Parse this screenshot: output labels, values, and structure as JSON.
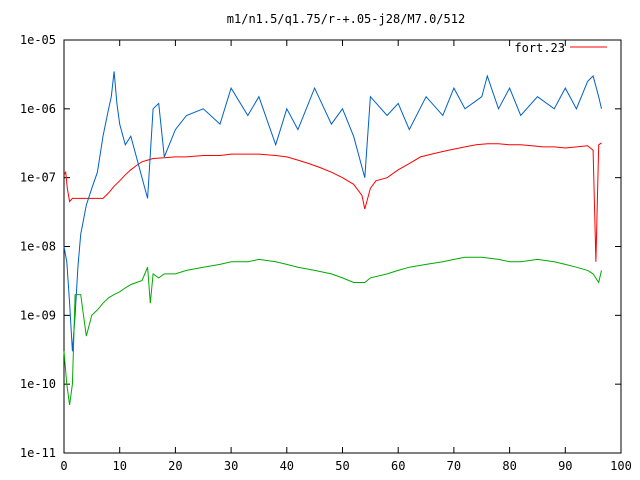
{
  "chart_data": {
    "type": "line",
    "title": "m1/n1.5/q1.75/r-+.05-j28/M7.0/512",
    "xlabel": "",
    "ylabel": "",
    "xlim": [
      0,
      100
    ],
    "ylim": [
      1e-11,
      1e-05
    ],
    "yscale": "log",
    "grid": false,
    "legend_position": "top-right",
    "x_ticks": [
      0,
      10,
      20,
      30,
      40,
      50,
      60,
      70,
      80,
      90,
      100
    ],
    "x_tick_labels": [
      "0",
      "10",
      "20",
      "30",
      "40",
      "50",
      "60",
      "70",
      "80",
      "90",
      "100"
    ],
    "y_ticks": [
      1e-11,
      1e-10,
      1e-09,
      1e-08,
      1e-07,
      1e-06,
      1e-05
    ],
    "y_tick_labels": [
      "1e-11",
      "1e-10",
      "1e-09",
      "1e-08",
      "1e-07",
      "1e-06",
      "1e-05"
    ],
    "series": [
      {
        "name": "fort.23",
        "color": "#ff0000",
        "x": [
          0,
          0.3,
          0.6,
          1,
          1.5,
          2,
          3,
          4,
          5,
          6,
          7,
          8,
          9,
          10,
          11,
          12,
          13,
          14,
          15,
          16,
          18,
          20,
          22,
          25,
          28,
          30,
          33,
          35,
          38,
          40,
          42,
          44,
          46,
          48,
          50,
          52,
          53.5,
          54,
          55,
          56,
          58,
          60,
          62,
          64,
          66,
          68,
          70,
          72,
          74,
          76,
          78,
          80,
          82,
          84,
          86,
          88,
          90,
          92,
          94,
          95,
          95.5,
          96,
          96.5
        ],
        "y": [
          1.1e-07,
          1.2e-07,
          7e-08,
          4.5e-08,
          5e-08,
          5e-08,
          5e-08,
          5e-08,
          5e-08,
          5e-08,
          5e-08,
          6e-08,
          7.5e-08,
          9e-08,
          1.1e-07,
          1.3e-07,
          1.5e-07,
          1.7e-07,
          1.8e-07,
          1.9e-07,
          1.95e-07,
          2e-07,
          2e-07,
          2.1e-07,
          2.1e-07,
          2.2e-07,
          2.2e-07,
          2.2e-07,
          2.1e-07,
          2e-07,
          1.8e-07,
          1.6e-07,
          1.4e-07,
          1.2e-07,
          1e-07,
          8e-08,
          5.5e-08,
          3.5e-08,
          7e-08,
          9e-08,
          1e-07,
          1.3e-07,
          1.6e-07,
          2e-07,
          2.2e-07,
          2.4e-07,
          2.6e-07,
          2.8e-07,
          3e-07,
          3.1e-07,
          3.1e-07,
          3e-07,
          3e-07,
          2.9e-07,
          2.8e-07,
          2.8e-07,
          2.7e-07,
          2.8e-07,
          2.9e-07,
          2.5e-07,
          6e-09,
          3e-07,
          3.2e-07
        ]
      },
      {
        "name": "",
        "color": "#0060c8",
        "x": [
          0,
          0.5,
          1,
          1.5,
          2,
          2.5,
          3,
          4,
          5,
          6,
          7,
          8,
          8.5,
          9,
          9.5,
          10,
          11,
          12,
          13,
          14,
          15,
          16,
          17,
          18,
          20,
          22,
          25,
          28,
          30,
          33,
          35,
          38,
          40,
          42,
          45,
          48,
          50,
          52,
          54,
          55,
          58,
          60,
          62,
          65,
          68,
          70,
          72,
          75,
          76,
          78,
          80,
          82,
          85,
          88,
          90,
          92,
          94,
          95,
          96,
          96.5
        ],
        "y": [
          1e-08,
          6e-09,
          1.5e-09,
          3e-10,
          1e-09,
          5e-09,
          1.5e-08,
          4e-08,
          7e-08,
          1.2e-07,
          4e-07,
          1e-06,
          1.5e-06,
          3.5e-06,
          1.2e-06,
          6e-07,
          3e-07,
          4e-07,
          2e-07,
          1e-07,
          5e-08,
          1e-06,
          1.2e-06,
          2e-07,
          5e-07,
          8e-07,
          1e-06,
          6e-07,
          2e-06,
          8e-07,
          1.5e-06,
          3e-07,
          1e-06,
          5e-07,
          2e-06,
          6e-07,
          1e-06,
          4e-07,
          1e-07,
          1.5e-06,
          8e-07,
          1.2e-06,
          5e-07,
          1.5e-06,
          8e-07,
          2e-06,
          1e-06,
          1.5e-06,
          3e-06,
          1e-06,
          2e-06,
          8e-07,
          1.5e-06,
          1e-06,
          2e-06,
          1e-06,
          2.5e-06,
          3e-06,
          1.5e-06,
          1e-06
        ]
      },
      {
        "name": "",
        "color": "#00aa00",
        "x": [
          0,
          0.5,
          1,
          1.5,
          2,
          3,
          4,
          5,
          6,
          7,
          8,
          9,
          10,
          11,
          12,
          13,
          14,
          15,
          15.5,
          16,
          17,
          18,
          20,
          22,
          25,
          28,
          30,
          33,
          35,
          38,
          40,
          42,
          45,
          48,
          50,
          52,
          54,
          55,
          58,
          60,
          62,
          65,
          68,
          70,
          72,
          75,
          78,
          80,
          82,
          85,
          88,
          90,
          92,
          94,
          95,
          96,
          96.5
        ],
        "y": [
          3e-10,
          1e-10,
          5e-11,
          1e-10,
          2e-09,
          2e-09,
          5e-10,
          1e-09,
          1.2e-09,
          1.5e-09,
          1.8e-09,
          2e-09,
          2.2e-09,
          2.5e-09,
          2.8e-09,
          3e-09,
          3.2e-09,
          5e-09,
          1.5e-09,
          4e-09,
          3.5e-09,
          4e-09,
          4e-09,
          4.5e-09,
          5e-09,
          5.5e-09,
          6e-09,
          6e-09,
          6.5e-09,
          6e-09,
          5.5e-09,
          5e-09,
          4.5e-09,
          4e-09,
          3.5e-09,
          3e-09,
          3e-09,
          3.5e-09,
          4e-09,
          4.5e-09,
          5e-09,
          5.5e-09,
          6e-09,
          6.5e-09,
          7e-09,
          7e-09,
          6.5e-09,
          6e-09,
          6e-09,
          6.5e-09,
          6e-09,
          5.5e-09,
          5e-09,
          4.5e-09,
          4e-09,
          3e-09,
          4.5e-09
        ]
      }
    ]
  }
}
